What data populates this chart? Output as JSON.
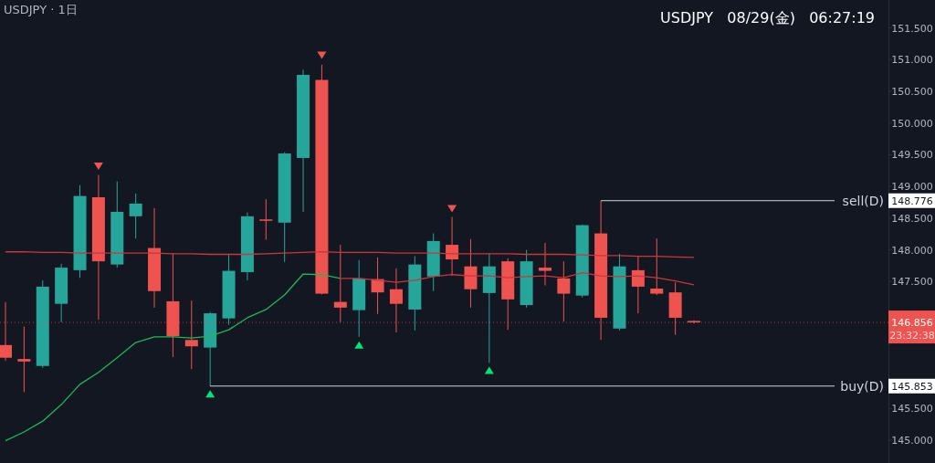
{
  "chart_data": {
    "type": "candlestick",
    "title": "USDJPY · 1日",
    "subtitle": "USDJPY   08/29(金)   06:27:19",
    "categories": [
      null,
      null,
      null,
      null,
      null,
      null,
      null,
      null,
      null,
      null,
      null,
      null,
      null,
      null,
      null,
      null,
      null,
      null,
      null,
      null,
      null,
      null,
      null,
      null,
      null,
      null,
      null,
      null,
      null,
      null,
      null,
      null,
      null,
      null,
      null,
      null,
      null,
      null
    ],
    "ohlc": [
      [
        146.5,
        147.18,
        146.25,
        146.3
      ],
      [
        146.28,
        146.79,
        145.76,
        146.24
      ],
      [
        146.17,
        147.52,
        146.14,
        147.42
      ],
      [
        147.15,
        147.78,
        146.86,
        147.72
      ],
      [
        147.68,
        149.02,
        147.56,
        148.85
      ],
      [
        148.83,
        149.18,
        146.9,
        147.82
      ],
      [
        147.77,
        149.08,
        147.72,
        148.6
      ],
      [
        148.53,
        148.89,
        148.18,
        148.73
      ],
      [
        148.03,
        148.66,
        147.09,
        147.35
      ],
      [
        147.19,
        147.95,
        146.31,
        146.64
      ],
      [
        146.58,
        147.2,
        146.12,
        146.48
      ],
      [
        146.46,
        147.02,
        145.853,
        147.0
      ],
      [
        146.92,
        147.94,
        146.82,
        147.67
      ],
      [
        147.65,
        148.59,
        147.52,
        148.53
      ],
      [
        148.48,
        148.8,
        148.16,
        148.46
      ],
      [
        148.43,
        149.54,
        147.81,
        149.52
      ],
      [
        149.45,
        150.84,
        148.6,
        150.76
      ],
      [
        150.68,
        150.92,
        147.3,
        147.31
      ],
      [
        147.18,
        148.08,
        146.86,
        147.09
      ],
      [
        147.05,
        147.84,
        146.63,
        147.55
      ],
      [
        147.54,
        147.88,
        146.99,
        147.33
      ],
      [
        147.38,
        147.71,
        146.7,
        147.15
      ],
      [
        147.06,
        147.9,
        146.73,
        147.77
      ],
      [
        147.58,
        148.26,
        147.35,
        148.14
      ],
      [
        148.08,
        148.52,
        147.59,
        147.85
      ],
      [
        147.74,
        148.17,
        147.09,
        147.38
      ],
      [
        147.32,
        147.95,
        146.22,
        147.74
      ],
      [
        147.82,
        147.87,
        146.74,
        147.22
      ],
      [
        147.13,
        148.0,
        147.09,
        147.82
      ],
      [
        147.72,
        148.11,
        147.44,
        147.67
      ],
      [
        147.55,
        147.82,
        146.87,
        147.31
      ],
      [
        147.28,
        148.4,
        147.25,
        148.39
      ],
      [
        148.26,
        148.776,
        146.58,
        146.93
      ],
      [
        146.76,
        147.94,
        146.73,
        147.74
      ],
      [
        147.68,
        147.9,
        147.0,
        147.42
      ],
      [
        147.39,
        148.18,
        147.29,
        147.31
      ],
      [
        147.33,
        147.49,
        146.66,
        146.93
      ],
      [
        146.88,
        146.89,
        146.84,
        146.856
      ]
    ],
    "colors": [
      "#ef5350",
      "#ef5350",
      "#26a69a",
      "#26a69a",
      "#26a69a",
      "#ef5350",
      "#26a69a",
      "#26a69a",
      "#ef5350",
      "#ef5350",
      "#ef5350",
      "#26a69a",
      "#26a69a",
      "#26a69a",
      "#ef5350",
      "#26a69a",
      "#26a69a",
      "#ef5350",
      "#ef5350",
      "#26a69a",
      "#ef5350",
      "#ef5350",
      "#26a69a",
      "#26a69a",
      "#ef5350",
      "#ef5350",
      "#26a69a",
      "#ef5350",
      "#26a69a",
      "#ef5350",
      "#ef5350",
      "#26a69a",
      "#ef5350",
      "#26a69a",
      "#ef5350",
      "#ef5350",
      "#ef5350",
      "#ef5350"
    ],
    "series": [
      {
        "type": "line",
        "color": "#c8373b",
        "values": [
          147.97,
          147.97,
          147.96,
          147.96,
          147.95,
          147.95,
          147.95,
          147.95,
          147.95,
          147.94,
          147.94,
          147.93,
          147.93,
          147.93,
          147.94,
          147.95,
          147.96,
          147.97,
          147.96,
          147.96,
          147.96,
          147.95,
          147.95,
          147.95,
          147.94,
          147.94,
          147.94,
          147.94,
          147.93,
          147.93,
          147.93,
          147.92,
          147.91,
          147.91,
          147.9,
          147.9,
          147.89,
          147.88
        ]
      },
      {
        "type": "line",
        "color": "#1db954",
        "values": [
          144.99,
          145.13,
          145.3,
          145.56,
          145.88,
          146.07,
          146.3,
          146.54,
          146.63,
          146.63,
          146.61,
          146.64,
          146.74,
          146.93,
          147.06,
          147.29,
          147.62,
          147.61,
          147.55,
          null,
          null,
          null,
          null,
          null,
          null,
          null,
          null,
          null,
          null,
          null,
          null,
          null,
          null,
          null,
          null,
          null,
          null,
          null
        ]
      },
      {
        "type": "line",
        "color": "#c8373b",
        "values": [
          null,
          null,
          null,
          null,
          null,
          null,
          null,
          null,
          null,
          null,
          null,
          null,
          null,
          null,
          null,
          null,
          null,
          null,
          147.55,
          147.55,
          147.52,
          147.49,
          147.52,
          147.58,
          147.61,
          147.59,
          147.59,
          147.56,
          147.58,
          147.59,
          147.56,
          147.64,
          147.59,
          147.58,
          147.59,
          147.56,
          147.51,
          147.45
        ]
      },
      {
        "type": "scatter",
        "marker": "triangle-down",
        "color": "#f05350",
        "values": [
          null,
          null,
          null,
          null,
          null,
          149.32,
          null,
          null,
          null,
          null,
          null,
          null,
          null,
          null,
          null,
          null,
          null,
          151.07,
          null,
          null,
          null,
          null,
          null,
          null,
          148.65,
          null,
          null,
          null,
          null,
          null,
          null,
          null,
          null,
          null,
          null,
          null,
          null,
          null
        ]
      },
      {
        "type": "scatter",
        "marker": "triangle",
        "color": "#00e676",
        "values": [
          null,
          null,
          null,
          null,
          null,
          null,
          null,
          null,
          null,
          null,
          null,
          145.73,
          null,
          null,
          null,
          null,
          null,
          null,
          null,
          146.5,
          null,
          null,
          null,
          null,
          null,
          null,
          146.1,
          null,
          null,
          null,
          null,
          null,
          null,
          null,
          null,
          null,
          null,
          null
        ]
      }
    ],
    "ylim": [
      144.64,
      151.94
    ],
    "yticks": [
      {
        "value": 145,
        "label": "145.000"
      },
      {
        "value": 145.5,
        "label": "145.500"
      },
      {
        "value": 147.5,
        "label": "147.500"
      },
      {
        "value": 148,
        "label": "148.000"
      },
      {
        "value": 148.5,
        "label": "148.500"
      },
      {
        "value": 149,
        "label": "149.000"
      },
      {
        "value": 149.5,
        "label": "149.500"
      },
      {
        "value": 150,
        "label": "150.000"
      },
      {
        "value": 150.5,
        "label": "150.500"
      },
      {
        "value": 151,
        "label": "151.000"
      },
      {
        "value": 151.5,
        "label": "151.500"
      }
    ],
    "ref_lines": [
      {
        "axis": "y",
        "value": 148.776,
        "label": "sell(D)",
        "color": "#d1d4dc"
      },
      {
        "axis": "y",
        "value": 145.853,
        "label": "buy(D)",
        "color": "#d1d4dc"
      },
      {
        "axis": "y",
        "value": 146.856,
        "color": "#ef5350",
        "line_style": "dotted"
      }
    ],
    "annotations": [
      "148.776",
      "145.853",
      "146.856",
      "23:32:38"
    ],
    "tick_labels": "y"
  }
}
